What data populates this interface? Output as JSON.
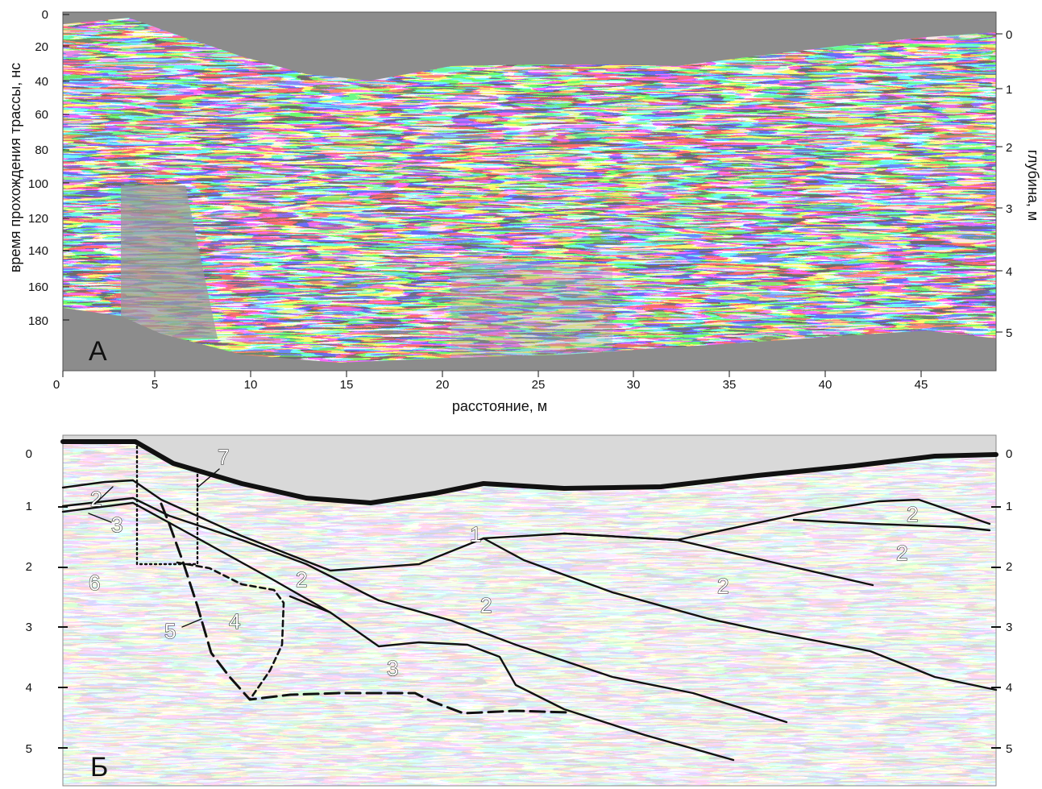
{
  "panel_a": {
    "letter": "А",
    "ylabel_left": "время прохождения трассы, нс",
    "ylabel_right": "глубина, м",
    "xlabel": "расстояние, м",
    "time_ticks": [
      "0",
      "20",
      "40",
      "60",
      "80",
      "100",
      "120",
      "140",
      "160",
      "180"
    ],
    "depth_ticks": [
      "0",
      "1",
      "2",
      "3",
      "4",
      "5"
    ],
    "x_ticks": [
      "0",
      "5",
      "10",
      "15",
      "20",
      "25",
      "30",
      "35",
      "40",
      "45"
    ]
  },
  "panel_b": {
    "letter": "Б",
    "depth_ticks_left": [
      "0",
      "1",
      "2",
      "3",
      "4",
      "5"
    ],
    "depth_ticks_right": [
      "0",
      "1",
      "2",
      "3",
      "4",
      "5"
    ],
    "unit_labels": [
      "1",
      "2",
      "2",
      "2",
      "2",
      "2",
      "2",
      "3",
      "3",
      "4",
      "5",
      "6",
      "7",
      "2"
    ]
  },
  "colors": {
    "background_gray": "#8c8c8c",
    "panel_b_background": "#d9d9d9",
    "line": "#111111"
  }
}
